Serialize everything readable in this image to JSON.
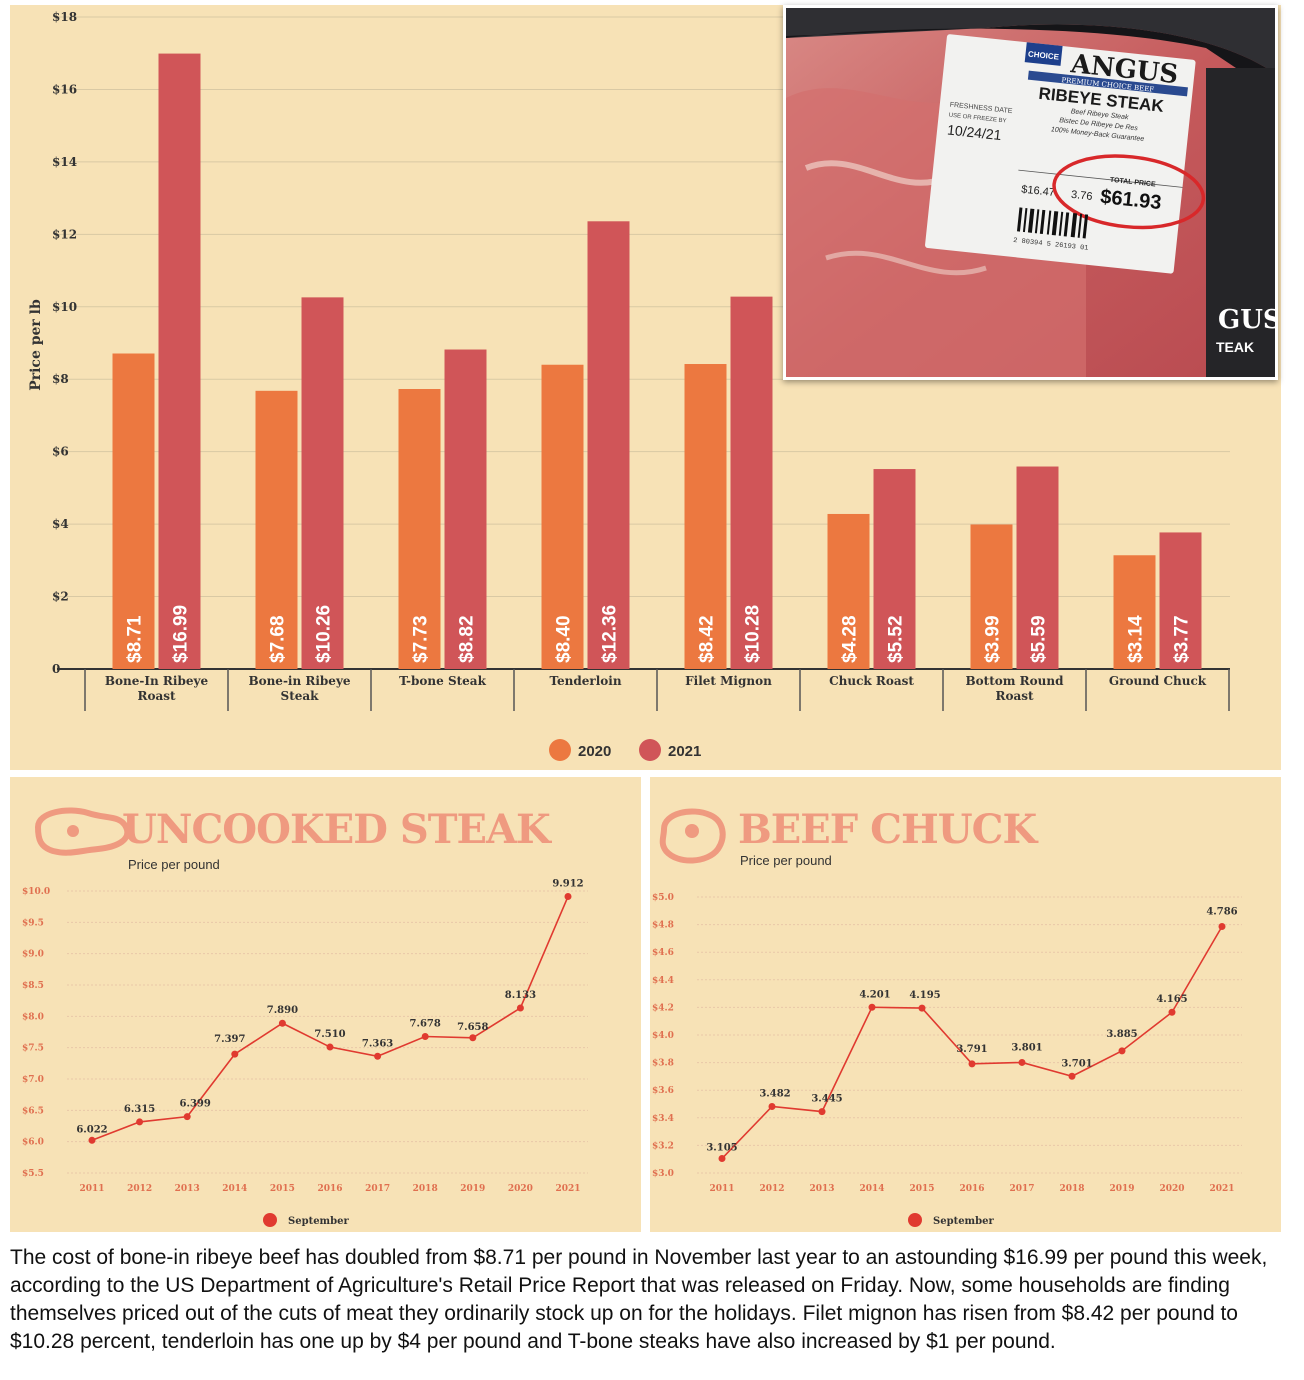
{
  "chart_data": [
    {
      "type": "bar",
      "ylabel": "Price per lb",
      "ylim": [
        0,
        18
      ],
      "yticks": [
        "0",
        "$2",
        "$4",
        "$6",
        "$8",
        "$10",
        "$12",
        "$14",
        "$16",
        "$18"
      ],
      "categories": [
        "Bone-In Ribeye Roast",
        "Bone-in Ribeye Steak",
        "T-bone Steak",
        "Tenderloin",
        "Filet Mignon",
        "Chuck Roast",
        "Bottom Round Roast",
        "Ground Chuck"
      ],
      "series": [
        {
          "name": "2020",
          "color": "#ec7840",
          "values": [
            8.71,
            7.68,
            7.73,
            8.4,
            8.42,
            4.28,
            3.99,
            3.14
          ],
          "labels": [
            "$8.71",
            "$7.68",
            "$7.73",
            "$8.40",
            "$8.42",
            "$4.28",
            "$3.99",
            "$3.14"
          ]
        },
        {
          "name": "2021",
          "color": "#d05558",
          "values": [
            16.99,
            10.26,
            8.82,
            12.36,
            10.28,
            5.52,
            5.59,
            3.77
          ],
          "labels": [
            "$16.99",
            "$10.26",
            "$8.82",
            "$12.36",
            "$10.28",
            "$5.52",
            "$5.59",
            "$3.77"
          ]
        }
      ],
      "legend": "bottom"
    },
    {
      "type": "line",
      "title": "UNCOOKED STEAK",
      "subtitle": "Price per pound",
      "ylim": [
        5.5,
        10.0
      ],
      "yticks": [
        "$5.5",
        "$6.0",
        "$6.5",
        "$7.0",
        "$7.5",
        "$8.0",
        "$8.5",
        "$9.0",
        "$9.5",
        "$10.0"
      ],
      "x": [
        "2011",
        "2012",
        "2013",
        "2014",
        "2015",
        "2016",
        "2017",
        "2018",
        "2019",
        "2020",
        "2021"
      ],
      "series": [
        {
          "name": "September",
          "color": "#e03a30",
          "values": [
            6.022,
            6.315,
            6.399,
            7.397,
            7.89,
            7.51,
            7.363,
            7.678,
            7.658,
            8.133,
            9.912
          ],
          "labels": [
            "6.022",
            "6.315",
            "6.399",
            "7.397",
            "7.890",
            "7.510",
            "7.363",
            "7.678",
            "7.658",
            "8.133",
            "9.912"
          ]
        }
      ]
    },
    {
      "type": "line",
      "title": "BEEF CHUCK",
      "subtitle": "Price per pound",
      "ylim": [
        3.0,
        5.0
      ],
      "yticks": [
        "$3.0",
        "$3.2",
        "$3.4",
        "$3.6",
        "$3.8",
        "$4.0",
        "$4.2",
        "$4.4",
        "$4.6",
        "$4.8",
        "$5.0"
      ],
      "x": [
        "2011",
        "2012",
        "2013",
        "2014",
        "2015",
        "2016",
        "2017",
        "2018",
        "2019",
        "2020",
        "2021"
      ],
      "series": [
        {
          "name": "September",
          "color": "#e03a30",
          "values": [
            3.105,
            3.482,
            3.445,
            4.201,
            4.195,
            3.791,
            3.801,
            3.701,
            3.885,
            4.165,
            4.786
          ],
          "labels": [
            "3.105",
            "3.482",
            "3.445",
            "4.201",
            "4.195",
            "3.791",
            "3.801",
            "3.701",
            "3.885",
            "4.165",
            "4.786"
          ]
        }
      ]
    }
  ],
  "photo": {
    "brand": "ANGUS",
    "brand_sub": "PREMIUM CHOICE BEEF",
    "badge": "CHOICE",
    "product": "RIBEYE STEAK",
    "line1": "Beef Ribeye Steak",
    "line2": "Bistec De Ribeye De Res",
    "line3": "100% Money-Back Guarantee",
    "fresh_label": "FRESHNESS DATE",
    "fresh_sub": "USE OR FREEZE BY",
    "fresh_date": "10/24/21",
    "price_per_lb": "$16.47",
    "weight": "3.76",
    "total_label": "TOTAL PRICE",
    "total_price": "$61.93",
    "barcode_digits": "2 80394 5 26193 01",
    "side_text": "GUS",
    "side_text2": "TEAK"
  },
  "caption": "The cost of bone-in ribeye beef has doubled from $8.71 per pound in November last year to an astounding $16.99 per pound this week, according to the US Department of Agriculture's Retail Price Report that was released on Friday. Now, some households are finding themselves priced out of the cuts of meat they ordinarily stock up on for the holidays. Filet mignon has risen from $8.42 per pound to $10.28 percent, tenderloin has one up by $4 per pound and T-bone steaks have also increased by $1 per pound."
}
